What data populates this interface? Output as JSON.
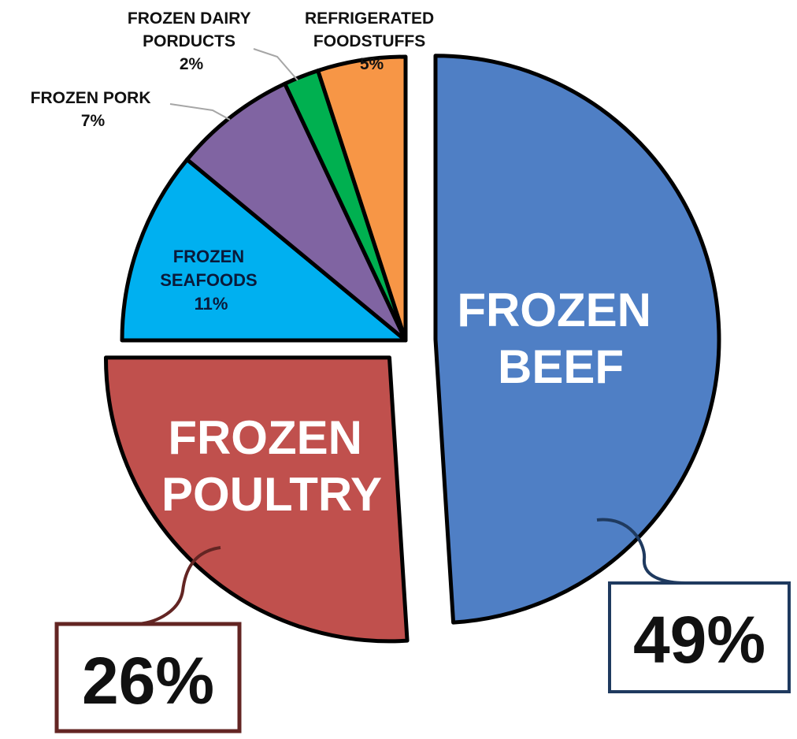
{
  "chart_data": {
    "type": "pie",
    "title": "",
    "slices": [
      {
        "label_lines": [
          "FROZEN",
          "BEEF"
        ],
        "value": 49,
        "pct_label": "49%",
        "color": "#4f7fc5",
        "exploded": true
      },
      {
        "label_lines": [
          "FROZEN",
          "POULTRY"
        ],
        "value": 26,
        "pct_label": "26%",
        "color": "#c0504d",
        "exploded": true
      },
      {
        "label_lines": [
          "FROZEN",
          "SEAFOODS"
        ],
        "value": 11,
        "pct_label": "11%",
        "color": "#00b0f0",
        "exploded": false
      },
      {
        "label_lines": [
          "FROZEN PORK"
        ],
        "value": 7,
        "pct_label": "7%",
        "color": "#8064a2",
        "exploded": false
      },
      {
        "label_lines": [
          "FROZEN DAIRY",
          "PORDUCTS"
        ],
        "value": 2,
        "pct_label": "2%",
        "color": "#00b050",
        "exploded": false
      },
      {
        "label_lines": [
          "REFRIGERATED",
          "FOODSTUFFS"
        ],
        "value": 5,
        "pct_label": "5%",
        "color": "#f79646",
        "exploded": false
      }
    ]
  }
}
